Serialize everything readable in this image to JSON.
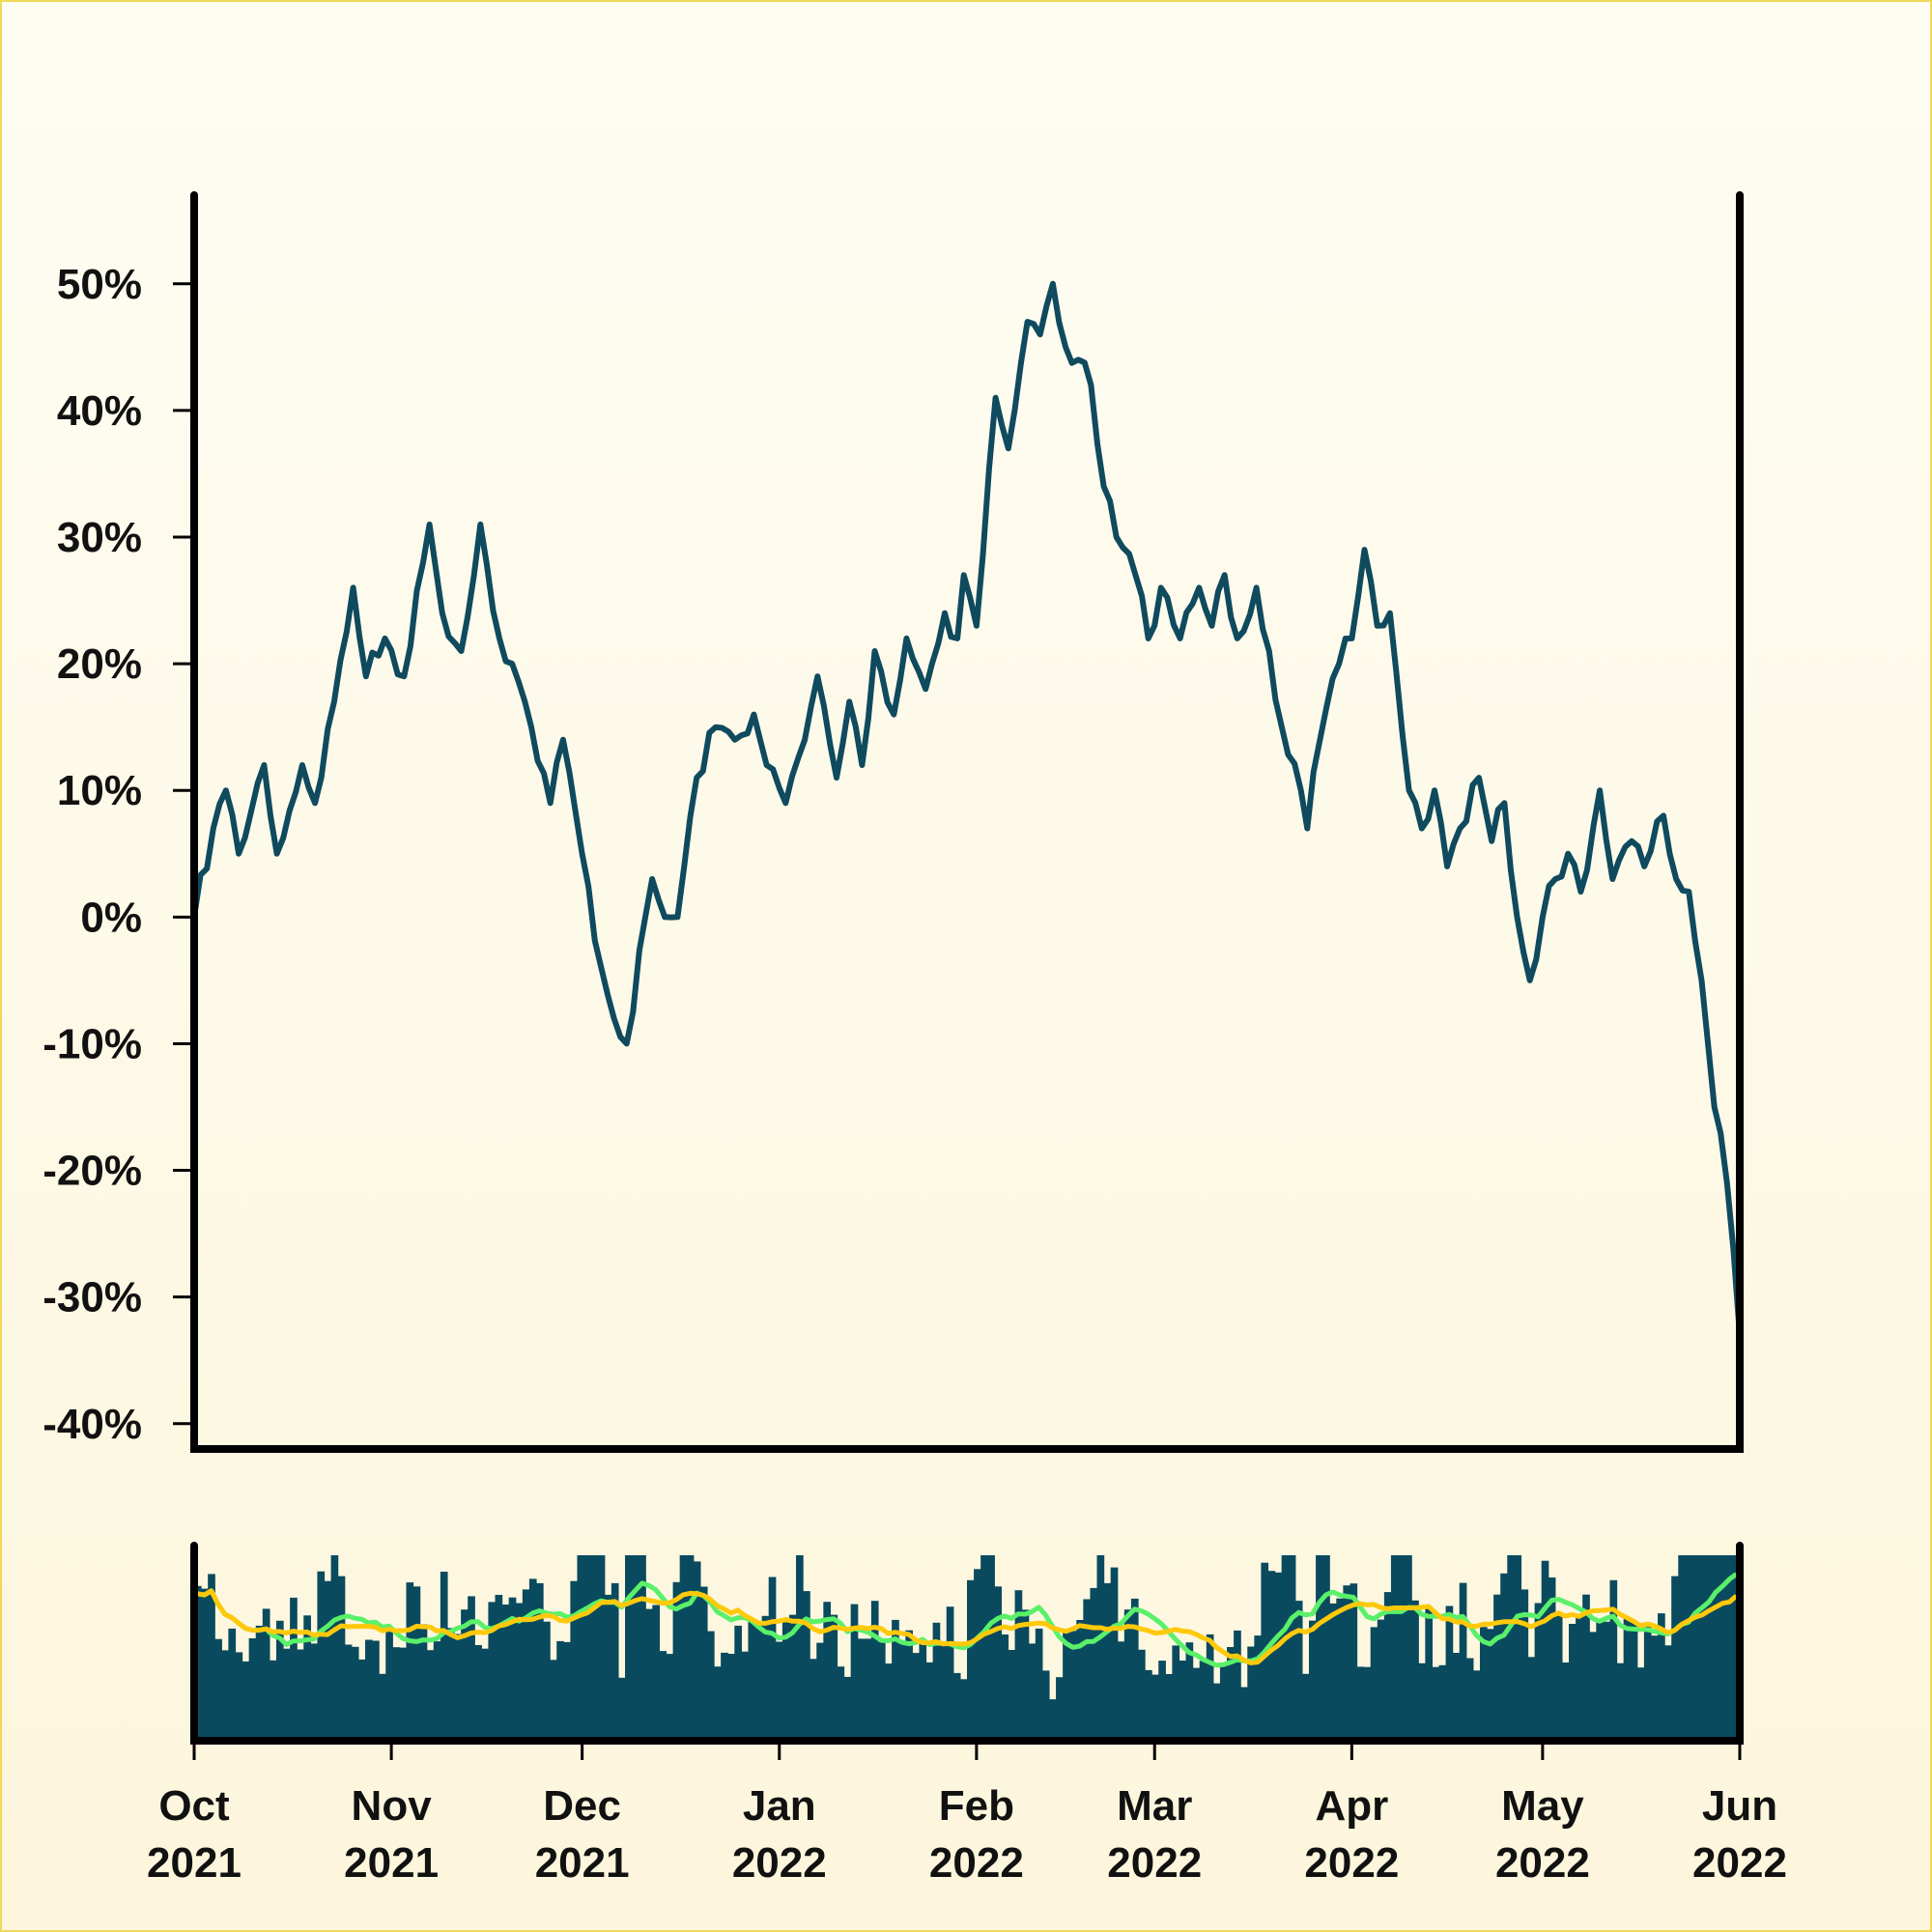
{
  "chart_data": {
    "type": "line",
    "title": "",
    "xlabel": "",
    "ylabel": "",
    "ylim": [
      -0.42,
      0.57
    ],
    "y_ticks": [
      {
        "value": 0.5,
        "label": "50%"
      },
      {
        "value": 0.4,
        "label": "40%"
      },
      {
        "value": 0.3,
        "label": "30%"
      },
      {
        "value": 0.2,
        "label": "20%"
      },
      {
        "value": 0.1,
        "label": "10%"
      },
      {
        "value": 0.0,
        "label": "0%"
      },
      {
        "value": -0.1,
        "label": "-10%"
      },
      {
        "value": -0.2,
        "label": "-20%"
      },
      {
        "value": -0.3,
        "label": "-30%"
      },
      {
        "value": -0.4,
        "label": "-40%"
      }
    ],
    "x_range": [
      "2021-10-01",
      "2022-06-01"
    ],
    "x_ticks": [
      {
        "date": "2021-10-01",
        "month": "Oct",
        "year": "2021"
      },
      {
        "date": "2021-11-01",
        "month": "Nov",
        "year": "2021"
      },
      {
        "date": "2021-12-01",
        "month": "Dec",
        "year": "2021"
      },
      {
        "date": "2022-01-01",
        "month": "Jan",
        "year": "2022"
      },
      {
        "date": "2022-02-01",
        "month": "Feb",
        "year": "2022"
      },
      {
        "date": "2022-03-01",
        "month": "Mar",
        "year": "2022"
      },
      {
        "date": "2022-04-01",
        "month": "Apr",
        "year": "2022"
      },
      {
        "date": "2022-05-01",
        "month": "May",
        "year": "2022"
      },
      {
        "date": "2022-06-01",
        "month": "Jun",
        "year": "2022"
      }
    ],
    "series": [
      {
        "color": "#0f4a5e",
        "points": [
          [
            "2021-10-01",
            0.0
          ],
          [
            "2021-10-04",
            0.07
          ],
          [
            "2021-10-06",
            0.1
          ],
          [
            "2021-10-08",
            0.05
          ],
          [
            "2021-10-12",
            0.12
          ],
          [
            "2021-10-14",
            0.05
          ],
          [
            "2021-10-18",
            0.12
          ],
          [
            "2021-10-20",
            0.09
          ],
          [
            "2021-10-23",
            0.17
          ],
          [
            "2021-10-26",
            0.26
          ],
          [
            "2021-10-28",
            0.19
          ],
          [
            "2021-10-31",
            0.22
          ],
          [
            "2021-11-03",
            0.19
          ],
          [
            "2021-11-06",
            0.28
          ],
          [
            "2021-11-07",
            0.31
          ],
          [
            "2021-11-09",
            0.24
          ],
          [
            "2021-11-12",
            0.21
          ],
          [
            "2021-11-14",
            0.27
          ],
          [
            "2021-11-15",
            0.31
          ],
          [
            "2021-11-18",
            0.22
          ],
          [
            "2021-11-20",
            0.2
          ],
          [
            "2021-11-23",
            0.15
          ],
          [
            "2021-11-26",
            0.09
          ],
          [
            "2021-11-28",
            0.14
          ],
          [
            "2021-12-01",
            0.05
          ],
          [
            "2021-12-04",
            -0.04
          ],
          [
            "2021-12-06",
            -0.08
          ],
          [
            "2021-12-08",
            -0.1
          ],
          [
            "2021-12-12",
            0.03
          ],
          [
            "2021-12-14",
            0.0
          ],
          [
            "2021-12-16",
            0.0
          ],
          [
            "2021-12-19",
            0.11
          ],
          [
            "2021-12-22",
            0.15
          ],
          [
            "2021-12-25",
            0.14
          ],
          [
            "2021-12-28",
            0.16
          ],
          [
            "2021-12-30",
            0.12
          ],
          [
            "2022-01-02",
            0.09
          ],
          [
            "2022-01-05",
            0.14
          ],
          [
            "2022-01-07",
            0.19
          ],
          [
            "2022-01-10",
            0.11
          ],
          [
            "2022-01-12",
            0.17
          ],
          [
            "2022-01-14",
            0.12
          ],
          [
            "2022-01-16",
            0.21
          ],
          [
            "2022-01-19",
            0.16
          ],
          [
            "2022-01-21",
            0.22
          ],
          [
            "2022-01-24",
            0.18
          ],
          [
            "2022-01-27",
            0.24
          ],
          [
            "2022-01-29",
            0.22
          ],
          [
            "2022-01-30",
            0.27
          ],
          [
            "2022-02-01",
            0.23
          ],
          [
            "2022-02-04",
            0.41
          ],
          [
            "2022-02-06",
            0.37
          ],
          [
            "2022-02-07",
            0.4
          ],
          [
            "2022-02-09",
            0.47
          ],
          [
            "2022-02-11",
            0.46
          ],
          [
            "2022-02-13",
            0.5
          ],
          [
            "2022-02-15",
            0.45
          ],
          [
            "2022-02-17",
            0.44
          ],
          [
            "2022-02-19",
            0.42
          ],
          [
            "2022-02-21",
            0.34
          ],
          [
            "2022-02-23",
            0.3
          ],
          [
            "2022-02-26",
            0.27
          ],
          [
            "2022-02-28",
            0.22
          ],
          [
            "2022-03-02",
            0.26
          ],
          [
            "2022-03-05",
            0.22
          ],
          [
            "2022-03-08",
            0.26
          ],
          [
            "2022-03-10",
            0.23
          ],
          [
            "2022-03-12",
            0.27
          ],
          [
            "2022-03-14",
            0.22
          ],
          [
            "2022-03-17",
            0.26
          ],
          [
            "2022-03-19",
            0.21
          ],
          [
            "2022-03-21",
            0.15
          ],
          [
            "2022-03-24",
            0.1
          ],
          [
            "2022-03-25",
            0.07
          ],
          [
            "2022-03-27",
            0.14
          ],
          [
            "2022-03-30",
            0.2
          ],
          [
            "2022-04-01",
            0.22
          ],
          [
            "2022-04-03",
            0.29
          ],
          [
            "2022-04-05",
            0.23
          ],
          [
            "2022-04-07",
            0.24
          ],
          [
            "2022-04-10",
            0.1
          ],
          [
            "2022-04-12",
            0.07
          ],
          [
            "2022-04-14",
            0.1
          ],
          [
            "2022-04-16",
            0.04
          ],
          [
            "2022-04-18",
            0.07
          ],
          [
            "2022-04-21",
            0.11
          ],
          [
            "2022-04-23",
            0.06
          ],
          [
            "2022-04-25",
            0.09
          ],
          [
            "2022-04-27",
            0.0
          ],
          [
            "2022-04-29",
            -0.05
          ],
          [
            "2022-05-01",
            0.0
          ],
          [
            "2022-05-03",
            0.03
          ],
          [
            "2022-05-05",
            0.05
          ],
          [
            "2022-05-07",
            0.02
          ],
          [
            "2022-05-10",
            0.1
          ],
          [
            "2022-05-12",
            0.03
          ],
          [
            "2022-05-15",
            0.06
          ],
          [
            "2022-05-17",
            0.04
          ],
          [
            "2022-05-20",
            0.08
          ],
          [
            "2022-05-22",
            0.03
          ],
          [
            "2022-05-24",
            0.02
          ],
          [
            "2022-05-26",
            -0.05
          ],
          [
            "2022-05-28",
            -0.15
          ],
          [
            "2022-05-30",
            -0.21
          ],
          [
            "2022-06-01",
            -0.33
          ]
        ]
      }
    ],
    "volume_panel": {
      "bar_color": "#0a4a5e",
      "bar_count": 226,
      "ma_lines": [
        {
          "color": "#5af06a"
        },
        {
          "color": "#ffc90a"
        }
      ]
    }
  }
}
